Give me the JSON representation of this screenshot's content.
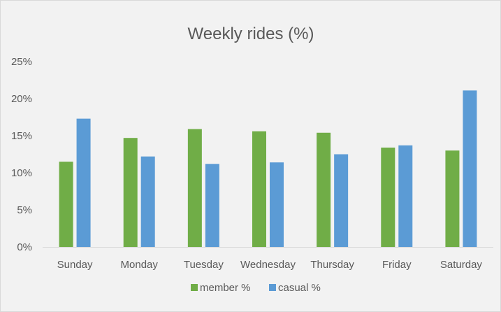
{
  "chart_data": {
    "type": "bar",
    "title": "Weekly rides (%)",
    "categories": [
      "Sunday",
      "Monday",
      "Tuesday",
      "Wednesday",
      "Thursday",
      "Friday",
      "Saturday"
    ],
    "series": [
      {
        "name": "member %",
        "color": "#70ad47",
        "values": [
          11.5,
          14.7,
          15.9,
          15.6,
          15.4,
          13.4,
          13.0
        ]
      },
      {
        "name": "casual %",
        "color": "#5b9bd5",
        "values": [
          17.3,
          12.2,
          11.2,
          11.4,
          12.5,
          13.7,
          21.1
        ]
      }
    ],
    "xlabel": "",
    "ylabel": "",
    "ylim": [
      0,
      25
    ],
    "yticks": [
      {
        "value": 0,
        "label": "0%"
      },
      {
        "value": 5,
        "label": "5%"
      },
      {
        "value": 10,
        "label": "10%"
      },
      {
        "value": 15,
        "label": "15%"
      },
      {
        "value": 20,
        "label": "20%"
      },
      {
        "value": 25,
        "label": "25%"
      }
    ],
    "grid": false,
    "legend": "bottom",
    "axis_color": "#d9d9d9",
    "background": "#f2f2f2"
  }
}
